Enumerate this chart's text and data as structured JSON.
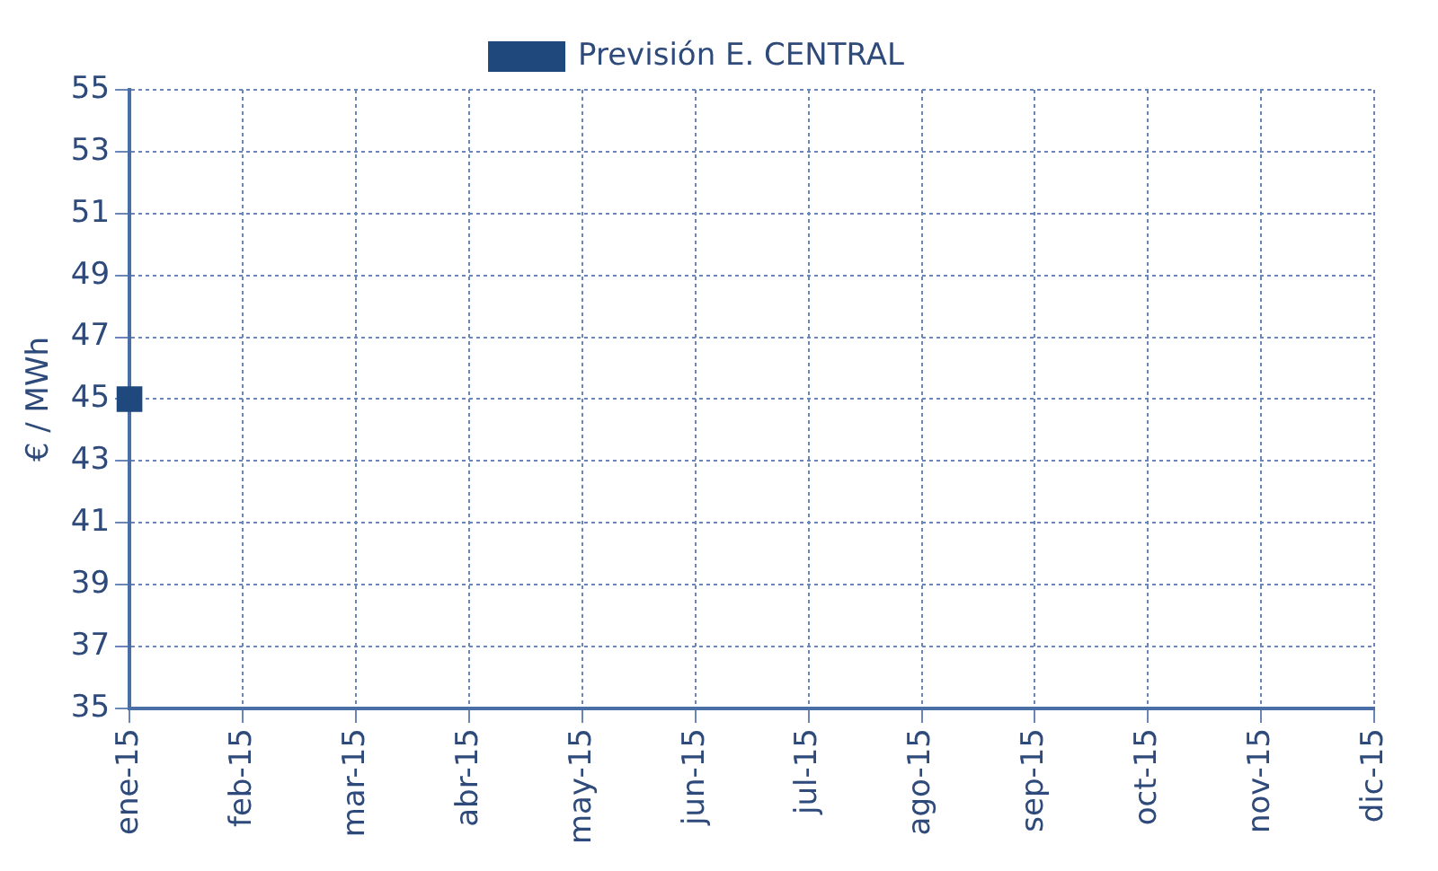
{
  "chart_data": {
    "type": "line",
    "ylabel": "€ / MWh",
    "categories": [
      "ene-15",
      "feb-15",
      "mar-15",
      "abr-15",
      "may-15",
      "jun-15",
      "jul-15",
      "ago-15",
      "sep-15",
      "oct-15",
      "nov-15",
      "dic-15"
    ],
    "series": [
      {
        "name": "Previsión E. CENTRAL",
        "color": "#1f497d",
        "values": [
          45,
          null,
          null,
          null,
          null,
          null,
          null,
          null,
          null,
          null,
          null,
          null
        ]
      }
    ],
    "ylim": [
      35,
      55
    ],
    "yticks": [
      35,
      37,
      39,
      41,
      43,
      45,
      47,
      49,
      51,
      53,
      55
    ],
    "grid": true,
    "legend": "top",
    "marker": "square"
  }
}
